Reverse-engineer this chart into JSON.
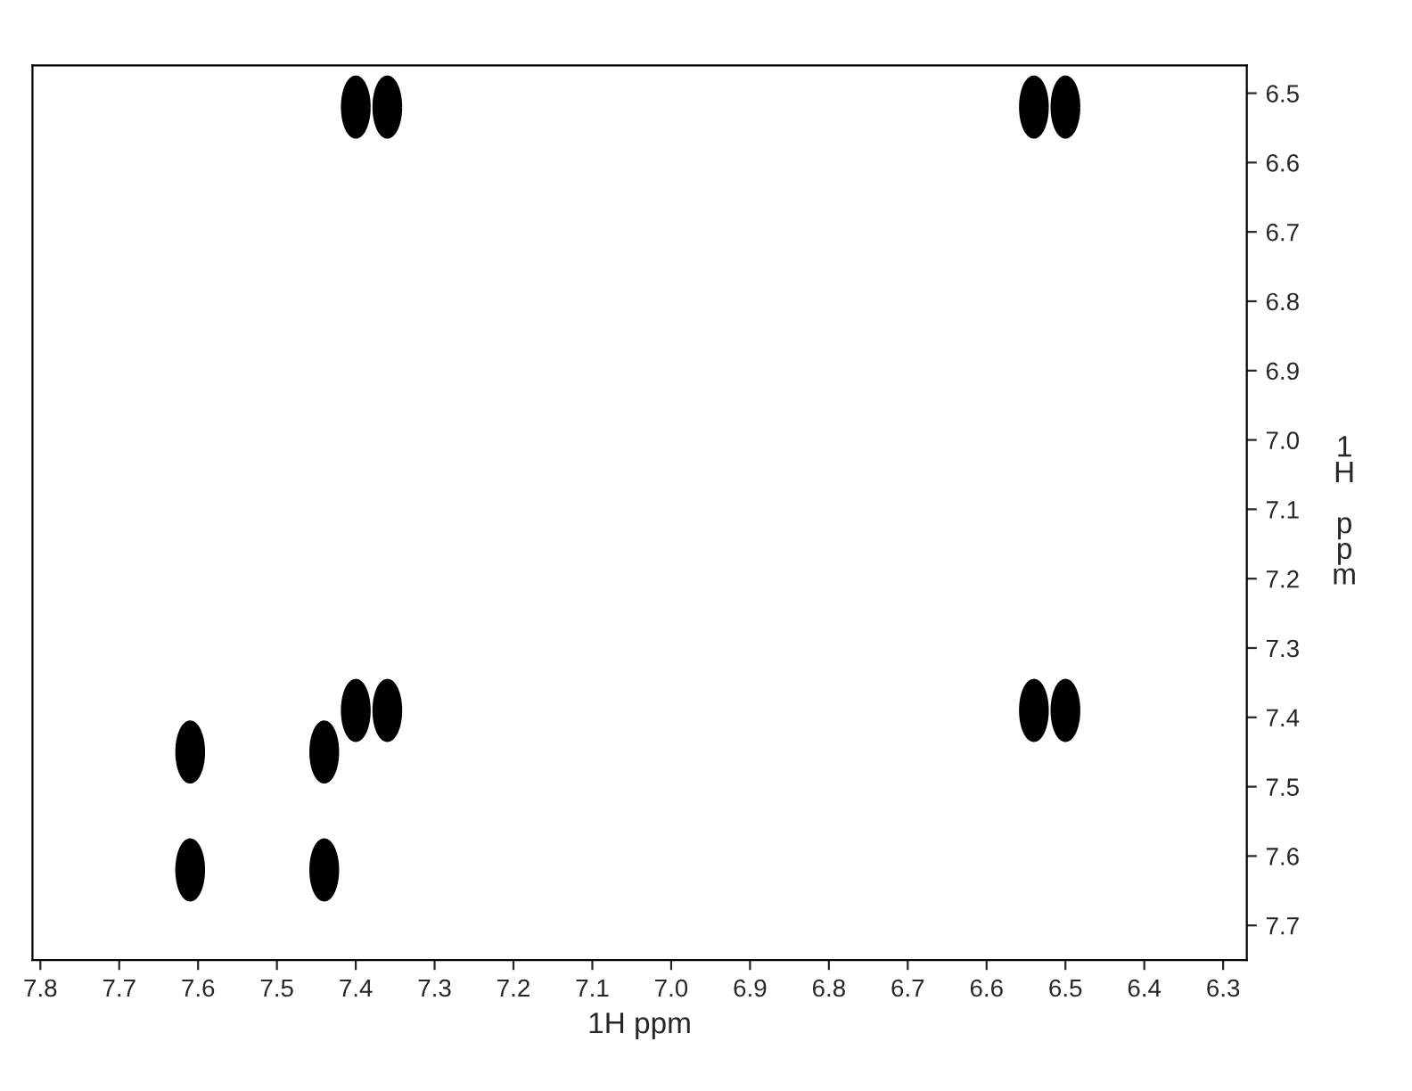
{
  "chart_data": {
    "type": "scatter",
    "xlabel": "1H ppm",
    "ylabel": "1H ppm",
    "x": [
      7.4,
      7.36,
      6.54,
      6.5,
      7.4,
      7.36,
      6.54,
      6.5,
      7.61,
      7.44,
      7.61,
      7.44
    ],
    "series": [
      {
        "color": "#000000",
        "values": [
          6.52,
          6.52,
          6.52,
          6.52,
          7.39,
          7.39,
          7.39,
          7.39,
          7.45,
          7.45,
          7.62,
          7.62
        ]
      }
    ],
    "marker": "circle",
    "xlim": [
      7.81,
      6.27
    ],
    "ylim": [
      7.75,
      6.46
    ],
    "xticks": [
      7.8,
      7.7,
      7.6,
      7.5,
      7.4,
      7.3,
      7.2,
      7.1,
      {
        "value": 7.0,
        "label": "7.0"
      },
      6.9,
      6.8,
      6.7,
      6.6,
      6.5,
      6.4,
      6.3
    ],
    "yticks": [
      6.5,
      6.6,
      6.7,
      6.8,
      6.9,
      {
        "value": 7.0,
        "label": "7.0"
      },
      7.1,
      7.2,
      7.3,
      7.4,
      7.5,
      7.6,
      7.7
    ],
    "grid": false,
    "legend": false
  }
}
